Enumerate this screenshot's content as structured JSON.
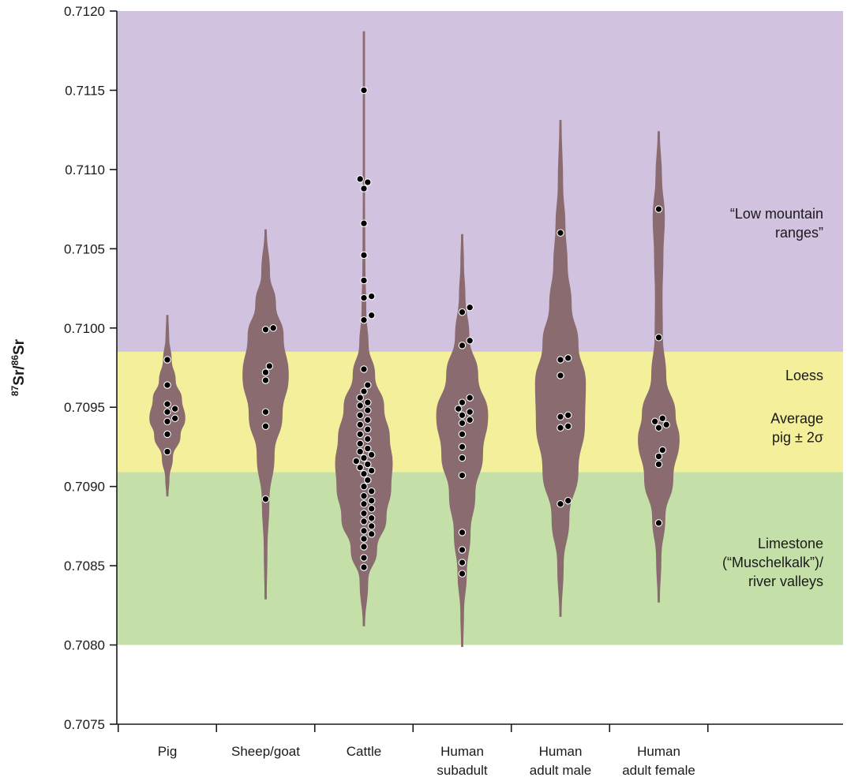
{
  "chart_data": {
    "type": "violin",
    "ylabel": {
      "sup1": "87",
      "main1": "Sr/",
      "sup2": "86",
      "main2": "Sr"
    },
    "ylim": [
      0.7075,
      0.712
    ],
    "yticks": [
      "0.7075",
      "0.7080",
      "0.7085",
      "0.7090",
      "0.7095",
      "0.7100",
      "0.7105",
      "0.7110",
      "0.7115",
      "0.7120"
    ],
    "grid": false,
    "bands": [
      {
        "name": "low-mountain-ranges",
        "from": 0.70985,
        "to": 0.712,
        "color": "#d1c2e0",
        "label": [
          "“Low mountain",
          "ranges”"
        ],
        "label_y": 0.71066
      },
      {
        "name": "loess",
        "from": 0.70909,
        "to": 0.70985,
        "color": "#f3ef9b",
        "label": [
          "Loess"
        ],
        "label_y": 0.7097
      },
      {
        "name": "average-pig",
        "from": 0.70909,
        "to": 0.70985,
        "color": "#f3ef9b",
        "label": [
          "Average",
          "pig ± 2σ"
        ],
        "label_y": 0.70937
      },
      {
        "name": "limestone",
        "from": 0.708,
        "to": 0.70909,
        "color": "#c4e0a8",
        "label": [
          "Limestone",
          "(“Muschelkalk”)/",
          "river valleys"
        ],
        "label_y": 0.70852
      }
    ],
    "violin_color": "#8a6b6f",
    "point_color": "#000000",
    "categories": [
      {
        "label": [
          "Pig"
        ],
        "min": 0.70894,
        "max": 0.71008,
        "violin": [
          [
            0.70894,
            0.0
          ],
          [
            0.70905,
            0.06
          ],
          [
            0.70918,
            0.18
          ],
          [
            0.70932,
            0.45
          ],
          [
            0.70943,
            0.62
          ],
          [
            0.70955,
            0.5
          ],
          [
            0.70967,
            0.28
          ],
          [
            0.7098,
            0.14
          ],
          [
            0.70994,
            0.05
          ],
          [
            0.71008,
            0.0
          ]
        ],
        "points": [
          0.70922,
          0.70933,
          0.70941,
          0.70943,
          0.70947,
          0.70949,
          0.70952,
          0.70964,
          0.7098
        ]
      },
      {
        "label": [
          "Sheep/goat"
        ],
        "min": 0.70829,
        "max": 0.71062,
        "violin": [
          [
            0.70829,
            0.0
          ],
          [
            0.7086,
            0.05
          ],
          [
            0.7089,
            0.12
          ],
          [
            0.7092,
            0.3
          ],
          [
            0.70945,
            0.58
          ],
          [
            0.7097,
            0.8
          ],
          [
            0.70995,
            0.62
          ],
          [
            0.71015,
            0.35
          ],
          [
            0.71035,
            0.14
          ],
          [
            0.71062,
            0.0
          ]
        ],
        "points": [
          0.70892,
          0.70938,
          0.70947,
          0.70967,
          0.70972,
          0.70976,
          0.70999,
          0.71
        ]
      },
      {
        "label": [
          "Cattle"
        ],
        "min": 0.70812,
        "max": 0.71187,
        "violin": [
          [
            0.70812,
            0.0
          ],
          [
            0.7084,
            0.14
          ],
          [
            0.7086,
            0.45
          ],
          [
            0.7088,
            0.78
          ],
          [
            0.709,
            0.95
          ],
          [
            0.70915,
            1.0
          ],
          [
            0.7093,
            0.9
          ],
          [
            0.7095,
            0.7
          ],
          [
            0.7097,
            0.38
          ],
          [
            0.7099,
            0.15
          ],
          [
            0.7101,
            0.07
          ],
          [
            0.7104,
            0.04
          ],
          [
            0.7108,
            0.025
          ],
          [
            0.7112,
            0.015
          ],
          [
            0.71187,
            0.0
          ]
        ],
        "points": [
          0.70849,
          0.70855,
          0.70862,
          0.70867,
          0.7087,
          0.70872,
          0.70875,
          0.70878,
          0.7088,
          0.70883,
          0.70886,
          0.70889,
          0.70891,
          0.70894,
          0.70897,
          0.709,
          0.70904,
          0.70908,
          0.7091,
          0.70912,
          0.70914,
          0.70916,
          0.70918,
          0.7092,
          0.70922,
          0.70924,
          0.70927,
          0.7093,
          0.70933,
          0.70936,
          0.70939,
          0.70942,
          0.70945,
          0.70948,
          0.70951,
          0.70953,
          0.70956,
          0.7096,
          0.70964,
          0.70974,
          0.71005,
          0.71008,
          0.71019,
          0.7102,
          0.7103,
          0.71046,
          0.71066,
          0.71088,
          0.71092,
          0.71094,
          0.7115
        ]
      },
      {
        "label": [
          "Human",
          "subadult"
        ],
        "min": 0.70799,
        "max": 0.71059,
        "violin": [
          [
            0.70799,
            0.0
          ],
          [
            0.7082,
            0.05
          ],
          [
            0.70845,
            0.15
          ],
          [
            0.7087,
            0.28
          ],
          [
            0.70895,
            0.45
          ],
          [
            0.7092,
            0.72
          ],
          [
            0.70945,
            0.9
          ],
          [
            0.7097,
            0.55
          ],
          [
            0.70995,
            0.24
          ],
          [
            0.7102,
            0.1
          ],
          [
            0.7104,
            0.05
          ],
          [
            0.71059,
            0.0
          ]
        ],
        "points": [
          0.70845,
          0.70852,
          0.7086,
          0.70871,
          0.70907,
          0.70918,
          0.70925,
          0.70933,
          0.7094,
          0.70942,
          0.70945,
          0.70947,
          0.70949,
          0.70953,
          0.70956,
          0.70989,
          0.70992,
          0.7101,
          0.71013
        ]
      },
      {
        "label": [
          "Human",
          "adult male"
        ],
        "min": 0.70818,
        "max": 0.71131,
        "violin": [
          [
            0.70818,
            0.0
          ],
          [
            0.7085,
            0.1
          ],
          [
            0.7088,
            0.3
          ],
          [
            0.7091,
            0.62
          ],
          [
            0.7094,
            0.85
          ],
          [
            0.70965,
            0.88
          ],
          [
            0.7099,
            0.62
          ],
          [
            0.71015,
            0.38
          ],
          [
            0.7104,
            0.24
          ],
          [
            0.71065,
            0.16
          ],
          [
            0.7109,
            0.08
          ],
          [
            0.71131,
            0.0
          ]
        ],
        "points": [
          0.70889,
          0.70891,
          0.70937,
          0.70938,
          0.70944,
          0.70945,
          0.7097,
          0.7098,
          0.70981,
          0.7106
        ]
      },
      {
        "label": [
          "Human",
          "adult female"
        ],
        "min": 0.70827,
        "max": 0.71124,
        "violin": [
          [
            0.70827,
            0.0
          ],
          [
            0.70855,
            0.08
          ],
          [
            0.7088,
            0.22
          ],
          [
            0.70905,
            0.5
          ],
          [
            0.7093,
            0.72
          ],
          [
            0.70945,
            0.58
          ],
          [
            0.7097,
            0.25
          ],
          [
            0.70995,
            0.13
          ],
          [
            0.7102,
            0.12
          ],
          [
            0.71045,
            0.15
          ],
          [
            0.7107,
            0.2
          ],
          [
            0.71095,
            0.1
          ],
          [
            0.71124,
            0.0
          ]
        ],
        "points": [
          0.70877,
          0.70914,
          0.70919,
          0.70923,
          0.70937,
          0.70939,
          0.70941,
          0.70943,
          0.70994,
          0.71075
        ]
      }
    ]
  }
}
